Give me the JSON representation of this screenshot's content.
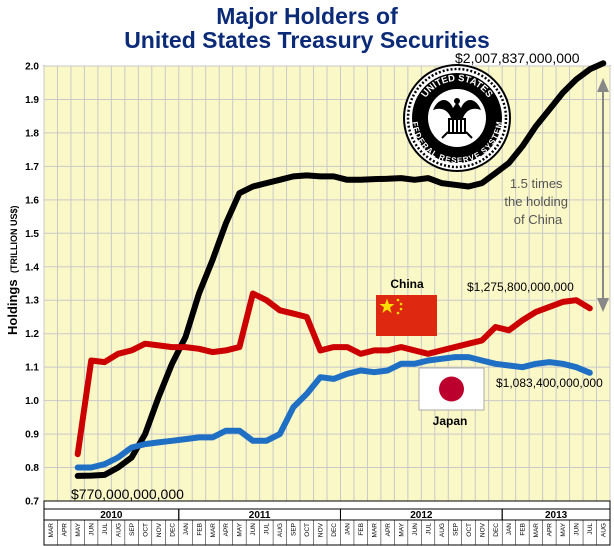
{
  "chart_data": {
    "type": "line",
    "title": "Major Holders of",
    "subtitle": "United States Treasury Securities",
    "ylabel": "Holdings",
    "ylabel_unit": "(TRILLION US$)",
    "xlabel": "",
    "ylim": [
      0.7,
      2.0
    ],
    "yticks": [
      "0.7",
      "0.8",
      "0.9",
      "1.0",
      "1.1",
      "1.2",
      "1.3",
      "1.4",
      "1.5",
      "1.6",
      "1.7",
      "1.8",
      "1.9",
      "2.0"
    ],
    "grid": true,
    "x_months": [
      "MAR",
      "APR",
      "MAY",
      "JUN",
      "JUL",
      "AUG",
      "SEP",
      "OCT",
      "NOV",
      "DEC",
      "JAN",
      "FEB",
      "MAR",
      "APR",
      "MAY",
      "JUN",
      "JUL",
      "AUG",
      "SEP",
      "OCT",
      "NOV",
      "DEC",
      "JAN",
      "FEB",
      "MAR",
      "APR",
      "MAY",
      "JUN",
      "JUL",
      "AUG",
      "SEP",
      "OCT",
      "NOV",
      "DEC",
      "JAN",
      "FEB",
      "MAR",
      "APR",
      "MAY",
      "JUN",
      "JUL",
      "AUG"
    ],
    "x_years": [
      {
        "label": "2010",
        "from": 0,
        "to": 9
      },
      {
        "label": "2011",
        "from": 10,
        "to": 21
      },
      {
        "label": "2012",
        "from": 22,
        "to": 33
      },
      {
        "label": "2013",
        "from": 34,
        "to": 41
      }
    ],
    "series": [
      {
        "name": "",
        "color": "#000000",
        "points": [
          [
            2,
            0.775
          ],
          [
            3,
            0.776
          ],
          [
            4,
            0.778
          ],
          [
            5,
            0.8
          ],
          [
            6,
            0.83
          ],
          [
            7,
            0.9
          ],
          [
            8,
            1.01
          ],
          [
            9,
            1.11
          ],
          [
            10,
            1.19
          ],
          [
            11,
            1.32
          ],
          [
            12,
            1.42
          ],
          [
            13,
            1.53
          ],
          [
            14,
            1.62
          ],
          [
            15,
            1.64
          ],
          [
            16,
            1.65
          ],
          [
            17,
            1.66
          ],
          [
            18,
            1.67
          ],
          [
            19,
            1.673
          ],
          [
            20,
            1.67
          ],
          [
            21,
            1.67
          ],
          [
            22,
            1.66
          ],
          [
            23,
            1.66
          ],
          [
            24,
            1.662
          ],
          [
            25,
            1.663
          ],
          [
            26,
            1.665
          ],
          [
            27,
            1.66
          ],
          [
            28,
            1.665
          ],
          [
            29,
            1.65
          ],
          [
            30,
            1.645
          ],
          [
            31,
            1.64
          ],
          [
            32,
            1.65
          ],
          [
            33,
            1.68
          ],
          [
            34,
            1.71
          ],
          [
            35,
            1.76
          ],
          [
            36,
            1.82
          ],
          [
            37,
            1.87
          ],
          [
            38,
            1.92
          ],
          [
            39,
            1.96
          ],
          [
            40,
            1.99
          ],
          [
            41,
            2.008
          ]
        ]
      },
      {
        "name": "China",
        "color": "#cc0000",
        "points": [
          [
            2,
            0.84
          ],
          [
            3,
            1.12
          ],
          [
            4,
            1.115
          ],
          [
            5,
            1.14
          ],
          [
            6,
            1.15
          ],
          [
            7,
            1.17
          ],
          [
            8,
            1.165
          ],
          [
            9,
            1.16
          ],
          [
            10,
            1.16
          ],
          [
            11,
            1.155
          ],
          [
            12,
            1.145
          ],
          [
            13,
            1.15
          ],
          [
            14,
            1.16
          ],
          [
            15,
            1.32
          ],
          [
            16,
            1.3
          ],
          [
            17,
            1.27
          ],
          [
            18,
            1.26
          ],
          [
            19,
            1.25
          ],
          [
            20,
            1.15
          ],
          [
            21,
            1.16
          ],
          [
            22,
            1.16
          ],
          [
            23,
            1.14
          ],
          [
            24,
            1.15
          ],
          [
            25,
            1.15
          ],
          [
            26,
            1.16
          ],
          [
            27,
            1.15
          ],
          [
            28,
            1.14
          ],
          [
            29,
            1.15
          ],
          [
            30,
            1.16
          ],
          [
            31,
            1.17
          ],
          [
            32,
            1.18
          ],
          [
            33,
            1.22
          ],
          [
            34,
            1.21
          ],
          [
            35,
            1.24
          ],
          [
            36,
            1.265
          ],
          [
            37,
            1.28
          ],
          [
            38,
            1.295
          ],
          [
            39,
            1.3
          ],
          [
            40,
            1.276
          ]
        ]
      },
      {
        "name": "Japan",
        "color": "#1f6fc4",
        "points": [
          [
            2,
            0.8
          ],
          [
            3,
            0.8
          ],
          [
            4,
            0.81
          ],
          [
            5,
            0.83
          ],
          [
            6,
            0.86
          ],
          [
            7,
            0.87
          ],
          [
            8,
            0.875
          ],
          [
            9,
            0.88
          ],
          [
            10,
            0.885
          ],
          [
            11,
            0.89
          ],
          [
            12,
            0.89
          ],
          [
            13,
            0.91
          ],
          [
            14,
            0.91
          ],
          [
            15,
            0.88
          ],
          [
            16,
            0.88
          ],
          [
            17,
            0.9
          ],
          [
            18,
            0.98
          ],
          [
            19,
            1.02
          ],
          [
            20,
            1.07
          ],
          [
            21,
            1.065
          ],
          [
            22,
            1.08
          ],
          [
            23,
            1.09
          ],
          [
            24,
            1.085
          ],
          [
            25,
            1.09
          ],
          [
            26,
            1.11
          ],
          [
            27,
            1.11
          ],
          [
            28,
            1.12
          ],
          [
            29,
            1.125
          ],
          [
            30,
            1.13
          ],
          [
            31,
            1.13
          ],
          [
            32,
            1.12
          ],
          [
            33,
            1.11
          ],
          [
            34,
            1.105
          ],
          [
            35,
            1.1
          ],
          [
            36,
            1.11
          ],
          [
            37,
            1.115
          ],
          [
            38,
            1.11
          ],
          [
            39,
            1.1
          ],
          [
            40,
            1.083
          ]
        ]
      }
    ],
    "annotations": {
      "top_value": "$2,007,837,000,000",
      "start_value": "$770,000,000,000",
      "china_value": "$1,275,800,000,000",
      "japan_value": "$1,083,400,000,000",
      "china_label": "China",
      "japan_label": "Japan",
      "comparison_line1": "1.5 times",
      "comparison_line2": "the holding",
      "comparison_line3": "of China",
      "seal_line1": "UNITED STATES",
      "seal_line2": "FEDERAL RESERVE SYSTEM"
    },
    "colors": {
      "plot_background": "#fbf8c8",
      "grid": "#c9c9c9",
      "title": "#0b2a78",
      "flag_china": "#de2910",
      "flag_china_star": "#ffde00",
      "flag_japan_disc": "#bc002d",
      "arrow": "#888888"
    }
  }
}
